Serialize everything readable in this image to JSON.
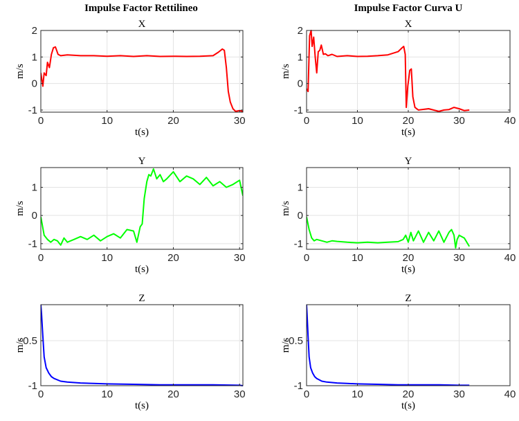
{
  "columns": [
    {
      "title": "Impulse Factor Rettilineo"
    },
    {
      "title": "Impulse Factor Curva U"
    }
  ],
  "chart_data": [
    {
      "type": "line",
      "column": 0,
      "row": 0,
      "title": "X",
      "xlabel": "t(s)",
      "ylabel": "m/s",
      "xlim": [
        0,
        30.5
      ],
      "ylim": [
        -1.08,
        2.0
      ],
      "xticks": [
        0,
        10,
        20,
        30
      ],
      "yticks": [
        -1,
        0,
        1,
        2
      ],
      "color": "#ff0000",
      "series": [
        {
          "x": [
            0,
            0.3,
            0.5,
            0.8,
            1.0,
            1.3,
            1.6,
            1.9,
            2.2,
            2.6,
            3,
            4,
            6,
            8,
            10,
            12,
            14,
            16,
            18,
            20,
            22,
            24,
            26,
            26.8,
            27.4,
            27.7,
            28.0,
            28.3,
            28.6,
            29.0,
            29.4,
            30.0,
            30.5
          ],
          "y": [
            0.4,
            -0.1,
            0.4,
            0.3,
            0.8,
            0.6,
            1.1,
            1.35,
            1.38,
            1.1,
            1.05,
            1.08,
            1.05,
            1.05,
            1.03,
            1.05,
            1.02,
            1.05,
            1.02,
            1.03,
            1.02,
            1.03,
            1.05,
            1.18,
            1.3,
            1.25,
            0.6,
            -0.3,
            -0.7,
            -0.95,
            -1.05,
            -1.02,
            -1.05
          ]
        }
      ]
    },
    {
      "type": "line",
      "column": 1,
      "row": 0,
      "title": "X",
      "xlabel": "t(s)",
      "ylabel": "m/s",
      "xlim": [
        0,
        40
      ],
      "ylim": [
        -1.08,
        2.0
      ],
      "xticks": [
        0,
        10,
        20,
        30,
        40
      ],
      "yticks": [
        -1,
        0,
        1,
        2
      ],
      "color": "#ff0000",
      "series": [
        {
          "x": [
            0,
            0.3,
            0.6,
            0.9,
            1.1,
            1.4,
            1.7,
            2.0,
            2.3,
            2.6,
            2.9,
            3.3,
            3.7,
            4.2,
            5,
            6,
            8,
            10,
            12,
            14,
            16,
            18,
            18.8,
            19.1,
            19.4,
            19.6,
            19.9,
            20.3,
            20.6,
            20.9,
            21.3,
            22,
            24,
            26,
            27,
            28,
            29,
            30,
            31,
            32
          ],
          "y": [
            -0.2,
            -0.3,
            1.8,
            2.0,
            1.4,
            1.75,
            1.0,
            0.4,
            1.2,
            1.25,
            1.45,
            1.1,
            1.12,
            1.05,
            1.1,
            1.02,
            1.05,
            1.02,
            1.03,
            1.05,
            1.08,
            1.2,
            1.35,
            1.4,
            1.1,
            -0.9,
            -0.1,
            0.5,
            0.55,
            -0.5,
            -0.9,
            -1.0,
            -0.95,
            -1.05,
            -1.0,
            -0.98,
            -0.9,
            -0.95,
            -1.02,
            -1.0
          ]
        }
      ]
    },
    {
      "type": "line",
      "column": 0,
      "row": 1,
      "title": "Y",
      "xlabel": "t(s)",
      "ylabel": "m/s",
      "xlim": [
        0,
        30.5
      ],
      "ylim": [
        -1.2,
        1.7
      ],
      "xticks": [
        0,
        10,
        20,
        30
      ],
      "yticks": [
        -1,
        0,
        1
      ],
      "color": "#00ff00",
      "series": [
        {
          "x": [
            0,
            0.5,
            1,
            1.5,
            2,
            2.5,
            3,
            3.5,
            4,
            5,
            6,
            7,
            8,
            9,
            10,
            11,
            12,
            13,
            14,
            14.5,
            15,
            15.3,
            15.6,
            16,
            16.3,
            16.6,
            17,
            17.5,
            18,
            18.5,
            19,
            20,
            21,
            22,
            23,
            24,
            25,
            26,
            27,
            28,
            29,
            30,
            30.5
          ],
          "y": [
            -0.05,
            -0.7,
            -0.85,
            -0.95,
            -0.85,
            -0.9,
            -1.05,
            -0.8,
            -0.95,
            -0.85,
            -0.75,
            -0.85,
            -0.7,
            -0.9,
            -0.75,
            -0.65,
            -0.8,
            -0.5,
            -0.55,
            -0.95,
            -0.4,
            -0.3,
            0.6,
            1.2,
            1.45,
            1.4,
            1.65,
            1.3,
            1.45,
            1.2,
            1.3,
            1.55,
            1.2,
            1.4,
            1.3,
            1.1,
            1.35,
            1.05,
            1.2,
            1.0,
            1.1,
            1.25,
            0.7
          ]
        }
      ]
    },
    {
      "type": "line",
      "column": 1,
      "row": 1,
      "title": "Y",
      "xlabel": "t(s)",
      "ylabel": "m/s",
      "xlim": [
        0,
        40
      ],
      "ylim": [
        -1.2,
        1.7
      ],
      "xticks": [
        0,
        10,
        20,
        30,
        40
      ],
      "yticks": [
        -1,
        0,
        1
      ],
      "color": "#00ff00",
      "series": [
        {
          "x": [
            0,
            0.5,
            1,
            1.5,
            2,
            3,
            4,
            5,
            6,
            8,
            10,
            12,
            14,
            16,
            18,
            19,
            19.5,
            20,
            20.5,
            21,
            22,
            23,
            24,
            25,
            26,
            27,
            28,
            28.5,
            29,
            29.3,
            29.6,
            30,
            31,
            32
          ],
          "y": [
            -0.05,
            -0.5,
            -0.8,
            -0.9,
            -0.85,
            -0.9,
            -0.95,
            -0.9,
            -0.92,
            -0.95,
            -0.97,
            -0.95,
            -0.97,
            -0.95,
            -0.93,
            -0.85,
            -0.7,
            -0.95,
            -0.6,
            -0.9,
            -0.55,
            -0.95,
            -0.6,
            -0.9,
            -0.55,
            -0.95,
            -0.6,
            -0.5,
            -0.7,
            -1.15,
            -0.85,
            -0.7,
            -0.8,
            -1.1
          ]
        }
      ]
    },
    {
      "type": "line",
      "column": 0,
      "row": 2,
      "title": "Z",
      "xlabel": "t(s)",
      "ylabel": "m/s",
      "xlim": [
        0,
        30.5
      ],
      "ylim": [
        -1.0,
        -0.1
      ],
      "xticks": [
        0,
        10,
        20,
        30
      ],
      "yticks": [
        -1,
        -0.5
      ],
      "color": "#0000ff",
      "series": [
        {
          "x": [
            0,
            0.1,
            0.3,
            0.5,
            0.8,
            1.2,
            1.6,
            2,
            3,
            4,
            6,
            8,
            10,
            14,
            18,
            22,
            26,
            30,
            30.5
          ],
          "y": [
            -0.1,
            -0.2,
            -0.45,
            -0.68,
            -0.8,
            -0.86,
            -0.9,
            -0.92,
            -0.95,
            -0.96,
            -0.97,
            -0.975,
            -0.98,
            -0.985,
            -0.99,
            -0.99,
            -0.99,
            -0.995,
            -1.0
          ]
        }
      ]
    },
    {
      "type": "line",
      "column": 1,
      "row": 2,
      "title": "Z",
      "xlabel": "t(s)",
      "ylabel": "m/s",
      "xlim": [
        0,
        40
      ],
      "ylim": [
        -1.0,
        -0.1
      ],
      "xticks": [
        0,
        10,
        20,
        30,
        40
      ],
      "yticks": [
        -1,
        -0.5
      ],
      "color": "#0000ff",
      "series": [
        {
          "x": [
            0,
            0.1,
            0.3,
            0.5,
            0.8,
            1.2,
            1.6,
            2,
            3,
            4,
            6,
            8,
            10,
            14,
            18,
            22,
            26,
            30,
            32
          ],
          "y": [
            -0.1,
            -0.2,
            -0.45,
            -0.68,
            -0.8,
            -0.86,
            -0.9,
            -0.92,
            -0.95,
            -0.96,
            -0.97,
            -0.975,
            -0.98,
            -0.985,
            -0.99,
            -0.99,
            -0.99,
            -0.995,
            -0.995
          ]
        }
      ]
    }
  ]
}
